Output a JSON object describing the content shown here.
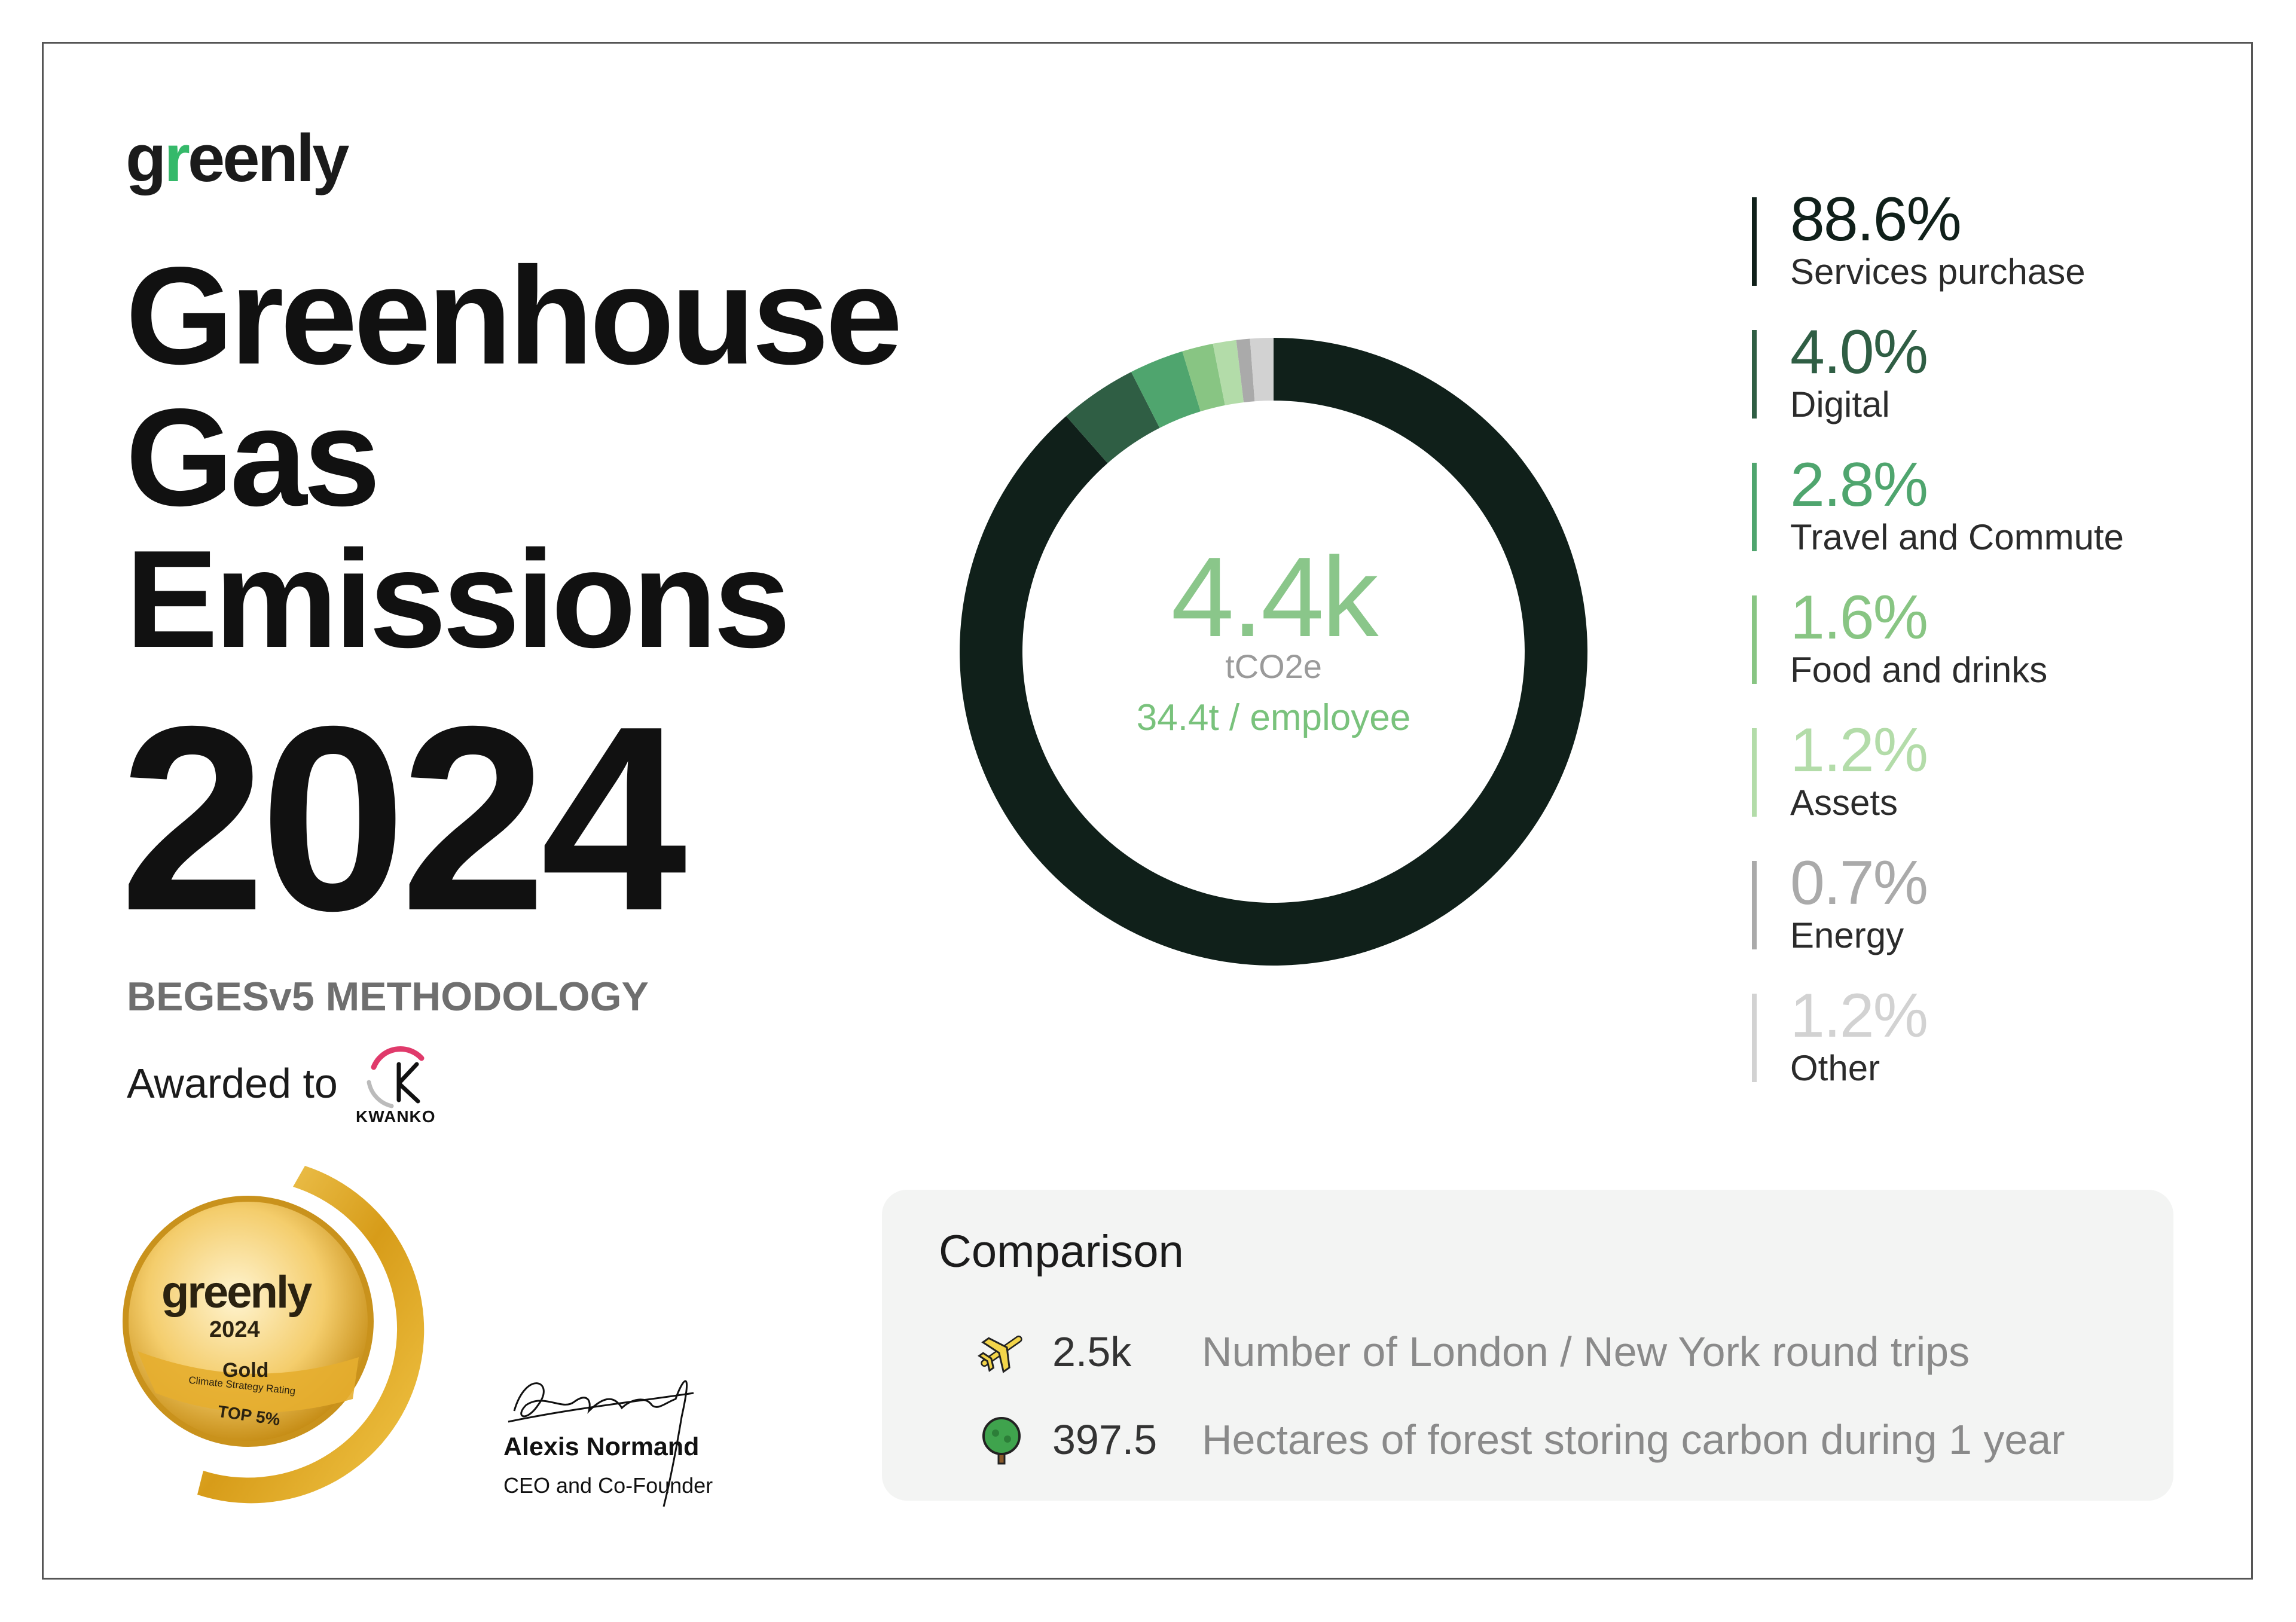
{
  "brand": {
    "name_part1": "g",
    "name_leaf": "r",
    "name_part2": "eenly"
  },
  "report": {
    "title_lines": [
      "Greenhouse",
      "Gas",
      "Emissions"
    ],
    "year": "2024",
    "methodology": "BEGESv5 METHODOLOGY",
    "awarded_to": "Awarded to",
    "company_logo_text": "KWANKO"
  },
  "medal": {
    "brand": "greenly",
    "year": "2024",
    "level": "Gold",
    "rating": "Climate Strategy Rating",
    "rank": "TOP 5%"
  },
  "signatory": {
    "name": "Alexis Normand",
    "role": "CEO and Co-Founder"
  },
  "chart_data": {
    "type": "pie",
    "title": "",
    "center_value": "4.4k",
    "center_unit": "tCO2e",
    "center_subtitle": "34.4t / employee",
    "series": [
      {
        "name": "Services purchase",
        "label": "88.6%",
        "value": 88.6,
        "color": "#10201a"
      },
      {
        "name": "Digital",
        "label": "4.0%",
        "value": 4.0,
        "color": "#2f5e44"
      },
      {
        "name": "Travel and Commute",
        "label": "2.8%",
        "value": 2.8,
        "color": "#4fa56e"
      },
      {
        "name": "Food and drinks",
        "label": "1.6%",
        "value": 1.6,
        "color": "#88c583"
      },
      {
        "name": "Assets",
        "label": "1.2%",
        "value": 1.2,
        "color": "#b3dca9"
      },
      {
        "name": "Energy",
        "label": "0.7%",
        "value": 0.7,
        "color": "#aaaaaa"
      },
      {
        "name": "Other",
        "label": "1.2%",
        "value": 1.2,
        "color": "#d2d2d2"
      }
    ],
    "legend_position": "right"
  },
  "comparison": {
    "title": "Comparison",
    "rows": [
      {
        "icon": "airplane-icon",
        "value": "2.5k",
        "description": "Number of London / New York round trips"
      },
      {
        "icon": "tree-icon",
        "value": "397.5",
        "description": "Hectares of forest storing carbon during 1 year"
      }
    ]
  }
}
